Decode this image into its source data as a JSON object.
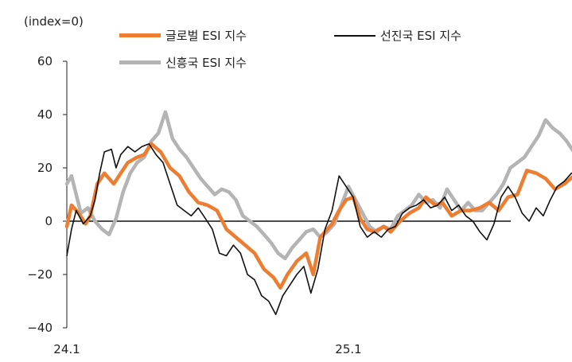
{
  "unit_label": "(index=0)",
  "legend": {
    "global": "글로벌 ESI 지수",
    "developed": "선진국 ESI 지수",
    "emerging": "신흥국 ESI 지수"
  },
  "colors": {
    "global": "#ec7d31",
    "developed": "#111111",
    "emerging": "#b4b4b4"
  },
  "chart_data": {
    "type": "line",
    "title": "",
    "xlabel": "",
    "ylabel": "(index=0)",
    "ylim": [
      -40,
      60
    ],
    "yticks": [
      -40,
      -20,
      0,
      20,
      40,
      60
    ],
    "xlim": [
      0,
      22.6
    ],
    "xticks": [
      {
        "x": 0,
        "label": "24.1"
      },
      {
        "x": 12,
        "label": "25.1"
      }
    ],
    "x_unit": "months since 24.1",
    "legend_position": "top",
    "series": [
      {
        "name": "글로벌 ESI 지수",
        "color": "#ec7d31",
        "points": [
          [
            0,
            -2
          ],
          [
            0.2,
            6
          ],
          [
            0.5,
            3
          ],
          [
            0.8,
            -1
          ],
          [
            1,
            2
          ],
          [
            1.3,
            14
          ],
          [
            1.6,
            18
          ],
          [
            2,
            14
          ],
          [
            2.3,
            18
          ],
          [
            2.6,
            22
          ],
          [
            3,
            24
          ],
          [
            3.3,
            25
          ],
          [
            3.6,
            29
          ],
          [
            4,
            26
          ],
          [
            4.4,
            20
          ],
          [
            4.8,
            17
          ],
          [
            5.2,
            11
          ],
          [
            5.6,
            7
          ],
          [
            6,
            6
          ],
          [
            6.4,
            4
          ],
          [
            6.8,
            -3
          ],
          [
            7.2,
            -6
          ],
          [
            7.6,
            -9
          ],
          [
            8,
            -12
          ],
          [
            8.4,
            -18
          ],
          [
            8.8,
            -21
          ],
          [
            9.1,
            -25
          ],
          [
            9.4,
            -20
          ],
          [
            9.8,
            -15
          ],
          [
            10.2,
            -12
          ],
          [
            10.5,
            -20
          ],
          [
            10.8,
            -6
          ],
          [
            11,
            -4
          ],
          [
            11.3,
            -1
          ],
          [
            11.6,
            4
          ],
          [
            11.9,
            8
          ],
          [
            12.2,
            9
          ],
          [
            12.5,
            1
          ],
          [
            12.8,
            -3
          ],
          [
            13.1,
            -4
          ],
          [
            13.5,
            -2
          ],
          [
            13.8,
            -4
          ],
          [
            14.2,
            0
          ],
          [
            14.6,
            3
          ],
          [
            15,
            5
          ],
          [
            15.3,
            9
          ],
          [
            15.7,
            6
          ],
          [
            16,
            7
          ],
          [
            16.4,
            2
          ],
          [
            16.8,
            4
          ],
          [
            17.2,
            4
          ],
          [
            17.6,
            5
          ],
          [
            18,
            7
          ],
          [
            18.4,
            4
          ],
          [
            18.8,
            9
          ],
          [
            19.2,
            10
          ],
          [
            19.6,
            19
          ],
          [
            20,
            18
          ],
          [
            20.4,
            16
          ],
          [
            20.8,
            12
          ],
          [
            21.2,
            14
          ],
          [
            21.6,
            17
          ],
          [
            22,
            19
          ],
          [
            22.4,
            16
          ]
        ]
      },
      {
        "name": "선진국 ESI 지수",
        "color": "#111111",
        "points": [
          [
            0,
            -13
          ],
          [
            0.2,
            -3
          ],
          [
            0.4,
            4
          ],
          [
            0.7,
            -1
          ],
          [
            1,
            2
          ],
          [
            1.2,
            8
          ],
          [
            1.4,
            18
          ],
          [
            1.6,
            26
          ],
          [
            1.9,
            27
          ],
          [
            2.1,
            20
          ],
          [
            2.3,
            25
          ],
          [
            2.6,
            28
          ],
          [
            2.9,
            26
          ],
          [
            3.2,
            28
          ],
          [
            3.5,
            29
          ],
          [
            3.8,
            25
          ],
          [
            4.1,
            22
          ],
          [
            4.4,
            14
          ],
          [
            4.7,
            6
          ],
          [
            5,
            4
          ],
          [
            5.3,
            2
          ],
          [
            5.6,
            5
          ],
          [
            5.9,
            1
          ],
          [
            6.2,
            -3
          ],
          [
            6.5,
            -12
          ],
          [
            6.8,
            -13
          ],
          [
            7.1,
            -9
          ],
          [
            7.4,
            -12
          ],
          [
            7.7,
            -20
          ],
          [
            8,
            -22
          ],
          [
            8.3,
            -28
          ],
          [
            8.6,
            -30
          ],
          [
            8.9,
            -35
          ],
          [
            9.2,
            -28
          ],
          [
            9.5,
            -24
          ],
          [
            9.8,
            -20
          ],
          [
            10.1,
            -17
          ],
          [
            10.4,
            -27
          ],
          [
            10.7,
            -18
          ],
          [
            11,
            -3
          ],
          [
            11.3,
            4
          ],
          [
            11.6,
            17
          ],
          [
            11.9,
            13
          ],
          [
            12.2,
            9
          ],
          [
            12.5,
            -2
          ],
          [
            12.8,
            -6
          ],
          [
            13.1,
            -4
          ],
          [
            13.4,
            -6
          ],
          [
            13.7,
            -3
          ],
          [
            14,
            -2
          ],
          [
            14.3,
            3
          ],
          [
            14.6,
            5
          ],
          [
            14.9,
            6
          ],
          [
            15.2,
            8
          ],
          [
            15.5,
            5
          ],
          [
            15.8,
            6
          ],
          [
            16.1,
            9
          ],
          [
            16.4,
            4
          ],
          [
            16.7,
            6
          ],
          [
            17,
            2
          ],
          [
            17.3,
            0
          ],
          [
            17.6,
            -4
          ],
          [
            17.9,
            -7
          ],
          [
            18.2,
            -1
          ],
          [
            18.5,
            9
          ],
          [
            18.8,
            13
          ],
          [
            19.1,
            9
          ],
          [
            19.4,
            3
          ],
          [
            19.7,
            0
          ],
          [
            20,
            5
          ],
          [
            20.3,
            2
          ],
          [
            20.6,
            8
          ],
          [
            20.9,
            13
          ],
          [
            21.2,
            15
          ],
          [
            21.5,
            18
          ],
          [
            21.8,
            19
          ],
          [
            22.1,
            17
          ],
          [
            22.4,
            16
          ]
        ]
      },
      {
        "name": "신흥국 ESI 지수",
        "color": "#b4b4b4",
        "points": [
          [
            0,
            14
          ],
          [
            0.2,
            17
          ],
          [
            0.4,
            10
          ],
          [
            0.6,
            3
          ],
          [
            0.9,
            5
          ],
          [
            1.2,
            0
          ],
          [
            1.5,
            -3
          ],
          [
            1.8,
            -5
          ],
          [
            2.1,
            1
          ],
          [
            2.4,
            11
          ],
          [
            2.7,
            18
          ],
          [
            3,
            22
          ],
          [
            3.3,
            24
          ],
          [
            3.6,
            30
          ],
          [
            3.9,
            33
          ],
          [
            4.2,
            41
          ],
          [
            4.5,
            31
          ],
          [
            4.8,
            27
          ],
          [
            5.1,
            24
          ],
          [
            5.4,
            20
          ],
          [
            5.7,
            16
          ],
          [
            6,
            13
          ],
          [
            6.3,
            10
          ],
          [
            6.6,
            12
          ],
          [
            6.9,
            11
          ],
          [
            7.2,
            8
          ],
          [
            7.5,
            2
          ],
          [
            7.8,
            0
          ],
          [
            8.1,
            -2
          ],
          [
            8.4,
            -5
          ],
          [
            8.7,
            -8
          ],
          [
            9,
            -12
          ],
          [
            9.3,
            -14
          ],
          [
            9.6,
            -10
          ],
          [
            9.9,
            -7
          ],
          [
            10.2,
            -4
          ],
          [
            10.5,
            -3
          ],
          [
            10.8,
            -6
          ],
          [
            11.1,
            -4
          ],
          [
            11.4,
            -1
          ],
          [
            11.7,
            6
          ],
          [
            12,
            13
          ],
          [
            12.3,
            8
          ],
          [
            12.6,
            3
          ],
          [
            12.9,
            -2
          ],
          [
            13.2,
            -4
          ],
          [
            13.5,
            -2
          ],
          [
            13.8,
            -3
          ],
          [
            14.1,
            2
          ],
          [
            14.4,
            4
          ],
          [
            14.7,
            6
          ],
          [
            15,
            10
          ],
          [
            15.3,
            7
          ],
          [
            15.6,
            8
          ],
          [
            15.9,
            5
          ],
          [
            16.2,
            12
          ],
          [
            16.5,
            8
          ],
          [
            16.8,
            4
          ],
          [
            17.1,
            7
          ],
          [
            17.4,
            4
          ],
          [
            17.7,
            4
          ],
          [
            18,
            7
          ],
          [
            18.3,
            10
          ],
          [
            18.6,
            14
          ],
          [
            18.9,
            20
          ],
          [
            19.2,
            22
          ],
          [
            19.5,
            24
          ],
          [
            19.8,
            28
          ],
          [
            20.1,
            32
          ],
          [
            20.4,
            38
          ],
          [
            20.7,
            35
          ],
          [
            21,
            33
          ],
          [
            21.3,
            30
          ],
          [
            21.6,
            26
          ],
          [
            21.9,
            23
          ],
          [
            22.2,
            20
          ],
          [
            22.4,
            17
          ]
        ]
      }
    ]
  }
}
